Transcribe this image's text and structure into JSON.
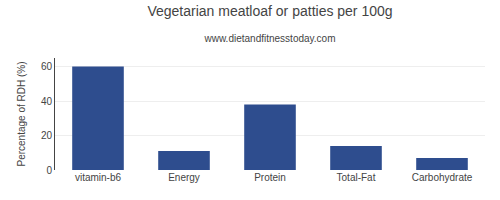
{
  "chart_data": {
    "type": "bar",
    "title": "Vegetarian meatloaf or patties per 100g",
    "subtitle": "www.dietandfitnesstoday.com",
    "categories": [
      "vitamin-b6",
      "Energy",
      "Protein",
      "Total-Fat",
      "Carbohydrate"
    ],
    "values": [
      60,
      11,
      38,
      14,
      7
    ],
    "color": "#2e4d8e",
    "ylabel": "Percentage of RDH (%)",
    "ylim": [
      0,
      65
    ],
    "yticks": [
      0,
      20,
      40,
      60
    ],
    "grid": true
  }
}
